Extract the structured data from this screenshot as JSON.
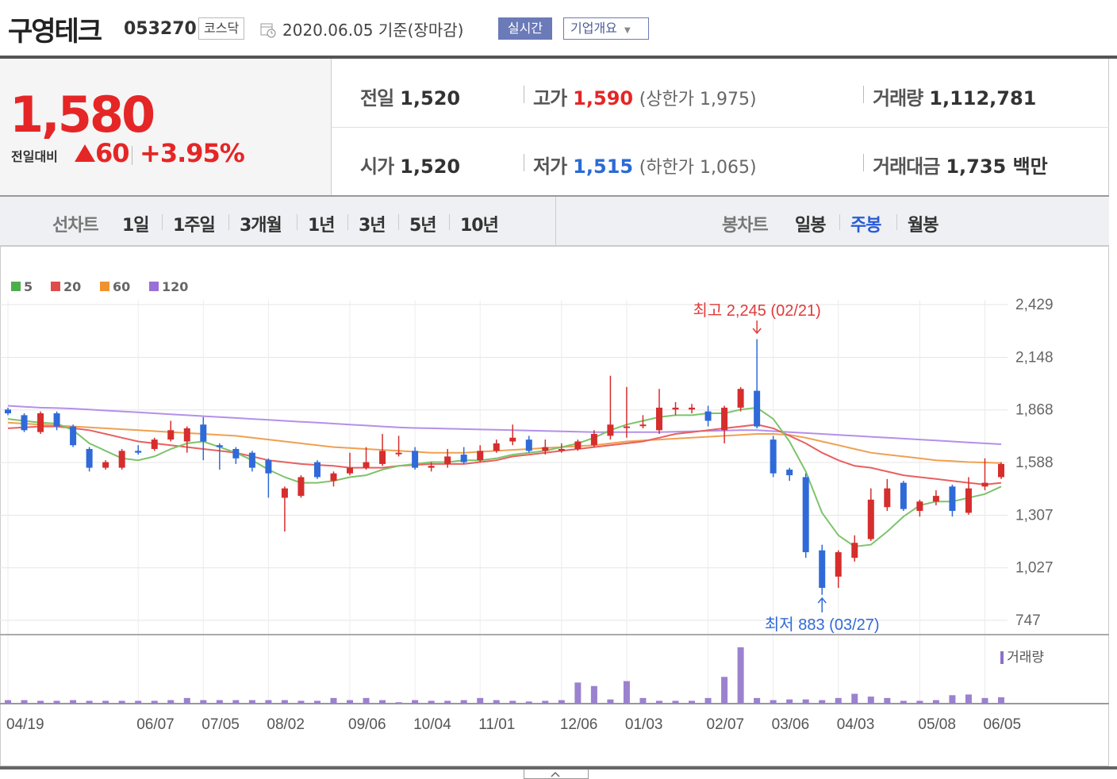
{
  "header": {
    "name": "구영테크",
    "code": "053270",
    "market": "코스닥",
    "date": "2020.06.05",
    "basis": "기준(장마감)",
    "realtime_label": "실시간",
    "company_label": "기업개요"
  },
  "price": {
    "current": "1,580",
    "change_label": "전일대비",
    "change": "60",
    "change_pct": "+3.95%"
  },
  "info": {
    "prev_label": "전일",
    "prev": "1,520",
    "open_label": "시가",
    "open": "1,520",
    "high_label": "고가",
    "high": "1,590",
    "upper_limit": "(상한가 1,975)",
    "low_label": "저가",
    "low": "1,515",
    "lower_limit": "(하한가 1,065)",
    "volume_label": "거래량",
    "volume": "1,112,781",
    "amount_label": "거래대금",
    "amount": "1,735 백만"
  },
  "period_bar": {
    "line_label": "선차트",
    "line_items": [
      "1일",
      "1주일",
      "3개월",
      "1년",
      "3년",
      "5년",
      "10년"
    ],
    "candle_label": "봉차트",
    "candle_items": [
      "일봉",
      "주봉",
      "월봉"
    ],
    "active": "주봉"
  },
  "legend": [
    {
      "label": "5",
      "color": "#4cae4c"
    },
    {
      "label": "20",
      "color": "#e04c4c"
    },
    {
      "label": "60",
      "color": "#f0922e"
    },
    {
      "label": "120",
      "color": "#9a6fd6"
    }
  ],
  "volume_label": "거래량",
  "chart_data": {
    "type": "candlestick",
    "title": "구영테크 주봉",
    "ylim": [
      747,
      2429
    ],
    "y_ticks": [
      "2,429",
      "2,148",
      "1,868",
      "1,588",
      "1,307",
      "1,027",
      "747"
    ],
    "x_ticks": [
      "04/19",
      "06/07",
      "07/05",
      "08/02",
      "09/06",
      "10/04",
      "11/01",
      "12/06",
      "01/03",
      "02/07",
      "03/06",
      "04/03",
      "05/08",
      "06/05"
    ],
    "annotations": {
      "high": "최고 2,245 (02/21)",
      "low": "최저 883 (03/27)"
    },
    "candles": [
      [
        1870,
        1850,
        1880,
        1840
      ],
      [
        1840,
        1760,
        1850,
        1750
      ],
      [
        1750,
        1850,
        1860,
        1740
      ],
      [
        1850,
        1780,
        1860,
        1760
      ],
      [
        1780,
        1680,
        1790,
        1670
      ],
      [
        1660,
        1560,
        1670,
        1540
      ],
      [
        1560,
        1590,
        1600,
        1550
      ],
      [
        1560,
        1650,
        1660,
        1550
      ],
      [
        1650,
        1640,
        1680,
        1630
      ],
      [
        1660,
        1710,
        1720,
        1650
      ],
      [
        1710,
        1760,
        1810,
        1700
      ],
      [
        1700,
        1770,
        1780,
        1640
      ],
      [
        1790,
        1700,
        1830,
        1600
      ],
      [
        1680,
        1670,
        1690,
        1550
      ],
      [
        1660,
        1610,
        1670,
        1580
      ],
      [
        1640,
        1560,
        1650,
        1540
      ],
      [
        1600,
        1530,
        1610,
        1400
      ],
      [
        1400,
        1450,
        1460,
        1220
      ],
      [
        1410,
        1510,
        1520,
        1400
      ],
      [
        1590,
        1510,
        1600,
        1500
      ],
      [
        1490,
        1530,
        1540,
        1460
      ],
      [
        1530,
        1560,
        1640,
        1520
      ],
      [
        1560,
        1590,
        1670,
        1550
      ],
      [
        1580,
        1650,
        1740,
        1570
      ],
      [
        1640,
        1640,
        1730,
        1620
      ],
      [
        1650,
        1560,
        1670,
        1550
      ],
      [
        1560,
        1570,
        1590,
        1540
      ],
      [
        1580,
        1620,
        1660,
        1560
      ],
      [
        1630,
        1590,
        1670,
        1580
      ],
      [
        1600,
        1650,
        1680,
        1590
      ],
      [
        1650,
        1690,
        1710,
        1640
      ],
      [
        1700,
        1720,
        1790,
        1680
      ],
      [
        1710,
        1650,
        1730,
        1640
      ],
      [
        1650,
        1670,
        1710,
        1630
      ],
      [
        1650,
        1660,
        1690,
        1640
      ],
      [
        1660,
        1700,
        1710,
        1650
      ],
      [
        1680,
        1740,
        1760,
        1670
      ],
      [
        1730,
        1790,
        2050,
        1710
      ],
      [
        1780,
        1780,
        1990,
        1720
      ],
      [
        1790,
        1790,
        1840,
        1770
      ],
      [
        1760,
        1880,
        1980,
        1740
      ],
      [
        1870,
        1880,
        1910,
        1840
      ],
      [
        1870,
        1880,
        1900,
        1850
      ],
      [
        1860,
        1810,
        1890,
        1780
      ],
      [
        1760,
        1880,
        1890,
        1690
      ],
      [
        1880,
        1980,
        1990,
        1860
      ],
      [
        1970,
        1780,
        2245,
        1770
      ],
      [
        1710,
        1530,
        1730,
        1510
      ],
      [
        1550,
        1520,
        1560,
        1490
      ],
      [
        1510,
        1110,
        1530,
        1080
      ],
      [
        1120,
        920,
        1150,
        883
      ],
      [
        980,
        1110,
        1120,
        920
      ],
      [
        1080,
        1160,
        1200,
        1060
      ],
      [
        1180,
        1390,
        1450,
        1170
      ],
      [
        1350,
        1450,
        1500,
        1330
      ],
      [
        1480,
        1340,
        1490,
        1330
      ],
      [
        1330,
        1380,
        1390,
        1300
      ],
      [
        1380,
        1410,
        1440,
        1360
      ],
      [
        1460,
        1330,
        1470,
        1300
      ],
      [
        1320,
        1450,
        1510,
        1310
      ],
      [
        1460,
        1480,
        1610,
        1440
      ],
      [
        1510,
        1580,
        1590,
        1500
      ]
    ],
    "ma5": [
      1820,
      1810,
      1800,
      1795,
      1760,
      1690,
      1650,
      1610,
      1600,
      1620,
      1660,
      1690,
      1700,
      1670,
      1640,
      1600,
      1550,
      1510,
      1480,
      1480,
      1490,
      1510,
      1520,
      1550,
      1570,
      1580,
      1590,
      1590,
      1600,
      1600,
      1610,
      1630,
      1640,
      1650,
      1670,
      1690,
      1720,
      1760,
      1790,
      1810,
      1830,
      1840,
      1840,
      1850,
      1850,
      1870,
      1880,
      1820,
      1700,
      1540,
      1320,
      1200,
      1140,
      1150,
      1220,
      1300,
      1360,
      1380,
      1380,
      1400,
      1420,
      1460
    ],
    "ma20": [
      1770,
      1775,
      1780,
      1780,
      1770,
      1760,
      1740,
      1720,
      1700,
      1690,
      1680,
      1670,
      1660,
      1650,
      1640,
      1620,
      1600,
      1590,
      1580,
      1575,
      1570,
      1560,
      1560,
      1560,
      1570,
      1575,
      1580,
      1580,
      1580,
      1590,
      1600,
      1620,
      1630,
      1640,
      1650,
      1660,
      1670,
      1680,
      1690,
      1700,
      1720,
      1740,
      1750,
      1760,
      1770,
      1780,
      1790,
      1770,
      1730,
      1690,
      1640,
      1600,
      1570,
      1560,
      1540,
      1520,
      1510,
      1500,
      1490,
      1480,
      1470,
      1480
    ],
    "ma60": [
      1800,
      1795,
      1790,
      1785,
      1780,
      1775,
      1770,
      1765,
      1760,
      1755,
      1750,
      1745,
      1740,
      1735,
      1730,
      1720,
      1710,
      1700,
      1690,
      1680,
      1670,
      1665,
      1660,
      1655,
      1650,
      1645,
      1640,
      1640,
      1640,
      1645,
      1650,
      1655,
      1660,
      1665,
      1670,
      1675,
      1680,
      1690,
      1700,
      1705,
      1710,
      1715,
      1720,
      1725,
      1730,
      1735,
      1740,
      1740,
      1735,
      1720,
      1700,
      1680,
      1660,
      1640,
      1630,
      1620,
      1610,
      1600,
      1595,
      1590,
      1588,
      1585
    ],
    "ma120": [
      1890,
      1885,
      1880,
      1878,
      1875,
      1870,
      1865,
      1860,
      1855,
      1850,
      1845,
      1840,
      1835,
      1830,
      1825,
      1820,
      1815,
      1810,
      1805,
      1800,
      1795,
      1790,
      1785,
      1780,
      1775,
      1772,
      1770,
      1768,
      1766,
      1764,
      1762,
      1760,
      1758,
      1756,
      1754,
      1752,
      1750,
      1750,
      1750,
      1750,
      1750,
      1752,
      1754,
      1756,
      1758,
      1760,
      1760,
      1755,
      1750,
      1745,
      1740,
      1735,
      1730,
      1725,
      1720,
      1715,
      1710,
      1705,
      1700,
      1695,
      1690,
      1685
    ],
    "volume": [
      5,
      5,
      4,
      4,
      5,
      4,
      4,
      4,
      4,
      4,
      5,
      8,
      5,
      5,
      5,
      5,
      5,
      5,
      4,
      4,
      8,
      5,
      8,
      5,
      2,
      5,
      4,
      4,
      5,
      8,
      5,
      4,
      3,
      4,
      5,
      30,
      25,
      6,
      32,
      8,
      4,
      4,
      4,
      8,
      38,
      80,
      8,
      5,
      6,
      6,
      5,
      8,
      14,
      10,
      8,
      4,
      4,
      5,
      12,
      13,
      8,
      9
    ]
  }
}
